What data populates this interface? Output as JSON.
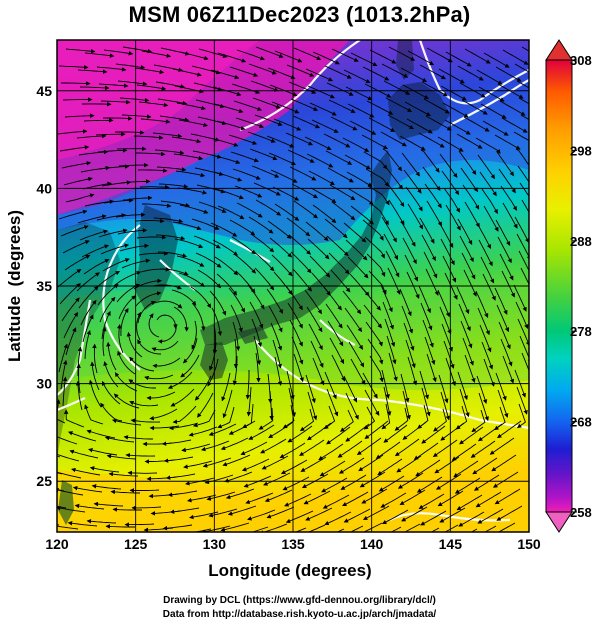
{
  "title": "MSM 06Z11Dec2023 (1013.2hPa)",
  "axes": {
    "xlabel": "Longitude (degrees)",
    "ylabel": "Latitude  (degrees)",
    "lon_range": [
      120,
      150
    ],
    "lat_range": [
      22.4,
      47.6
    ],
    "lon_ticks": [
      "120",
      "125",
      "130",
      "135",
      "140",
      "145",
      "150"
    ],
    "lat_ticks": [
      "25",
      "30",
      "35",
      "40",
      "45"
    ],
    "grid": true
  },
  "colorbar": {
    "unit_hint": "K",
    "min": 258,
    "max": 308,
    "labels": [
      "308",
      "298",
      "288",
      "278",
      "268",
      "258"
    ],
    "colors": [
      "#e0003c",
      "#ff5a00",
      "#ff9b00",
      "#ffd200",
      "#e8f000",
      "#a8e600",
      "#48d23c",
      "#00c878",
      "#00d2be",
      "#00aaf0",
      "#1464f0",
      "#1e1ed2",
      "#6a14c8",
      "#b414c8",
      "#f01eb4"
    ]
  },
  "credits": {
    "line1": "Drawing by DCL (https://www.gfd-dennou.org/library/dcl/)",
    "line2": "Data from http://database.rish.kyoto-u.ac.jp/arch/jmadata/"
  }
}
